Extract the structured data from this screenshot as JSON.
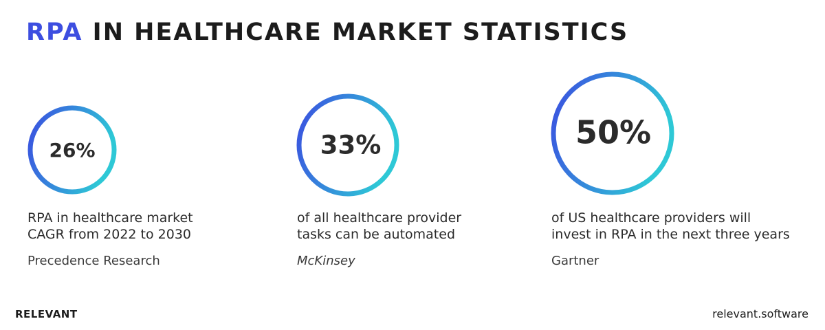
{
  "title": {
    "highlight": "RPA",
    "rest": "IN HEALTHCARE MARKET STATISTICS"
  },
  "stats": [
    {
      "value": "26%",
      "description": [
        "RPA in healthcare market",
        "CAGR from 2022 to 2030"
      ],
      "source": "Precedence Research"
    },
    {
      "value": "33%",
      "description": [
        "of all healthcare provider",
        "tasks can be automated"
      ],
      "source": "McKinsey"
    },
    {
      "value": "50%",
      "description": [
        "of US healthcare providers will",
        "invest in RPA in the next three years"
      ],
      "source": "Gartner"
    }
  ],
  "footer": {
    "brand": "RELEVANT",
    "site": "relevant.software"
  }
}
